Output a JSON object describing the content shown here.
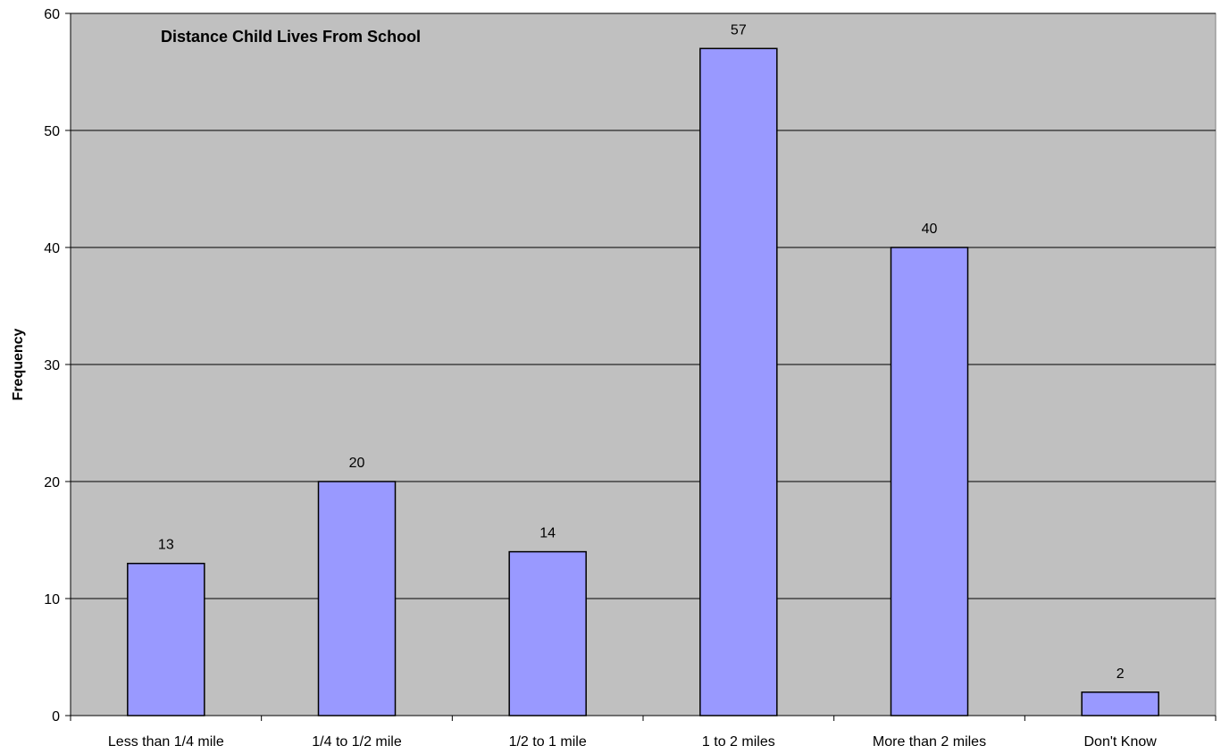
{
  "chart_data": {
    "type": "bar",
    "title": "Distance Child Lives From School",
    "xlabel": "",
    "ylabel": "Frequency",
    "categories": [
      "Less than 1/4 mile",
      "1/4 to 1/2 mile",
      "1/2 to 1 mile",
      "1 to 2 miles",
      "More than 2 miles",
      "Don't Know"
    ],
    "values": [
      13,
      20,
      14,
      57,
      40,
      2
    ],
    "ylim": [
      0,
      60
    ],
    "yticks": [
      "0",
      "10",
      "20",
      "30",
      "40",
      "50",
      "60"
    ],
    "grid": true,
    "legend": "none",
    "colors": {
      "plot_background": "#c0c0c0",
      "bar_fill": "#9999ff",
      "bar_stroke": "#000000",
      "gridline": "#000000"
    }
  }
}
